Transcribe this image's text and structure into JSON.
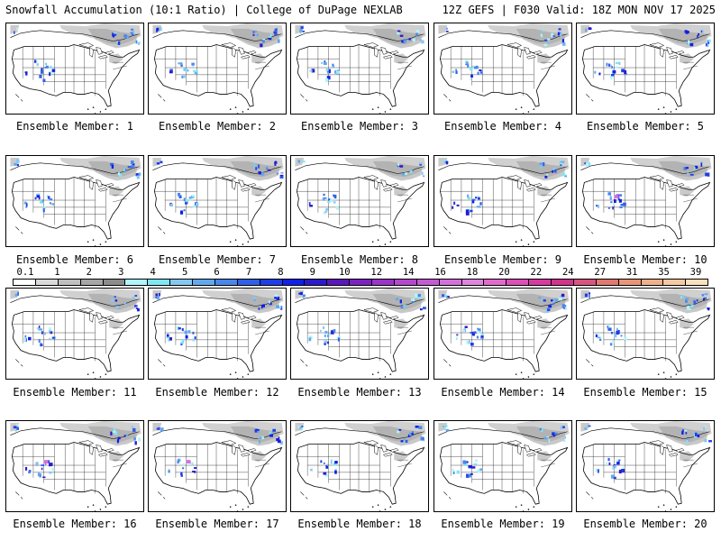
{
  "header": {
    "left": "Snowfall Accumulation (10:1 Ratio) | College of DuPage NEXLAB",
    "right": "12Z GEFS | F030 Valid: 18Z MON NOV 17 2025"
  },
  "members": [
    "Ensemble Member: 1",
    "Ensemble Member: 2",
    "Ensemble Member: 3",
    "Ensemble Member: 4",
    "Ensemble Member: 5",
    "Ensemble Member: 6",
    "Ensemble Member: 7",
    "Ensemble Member: 8",
    "Ensemble Member: 9",
    "Ensemble Member: 10",
    "Ensemble Member: 11",
    "Ensemble Member: 12",
    "Ensemble Member: 13",
    "Ensemble Member: 14",
    "Ensemble Member: 15",
    "Ensemble Member: 16",
    "Ensemble Member: 17",
    "Ensemble Member: 18",
    "Ensemble Member: 19",
    "Ensemble Member: 20"
  ],
  "legend": {
    "labels": [
      "0.1",
      "1",
      "2",
      "3",
      "4",
      "5",
      "6",
      "7",
      "8",
      "9",
      "10",
      "12",
      "14",
      "16",
      "18",
      "20",
      "22",
      "24",
      "27",
      "31",
      "35",
      "39"
    ],
    "colors": [
      "#ffffff",
      "#d9d9d9",
      "#bfbfbf",
      "#a6a6a6",
      "#8c8c8c",
      "#aef6fb",
      "#7fe6f5",
      "#85c7f2",
      "#62a8f0",
      "#4a86ec",
      "#3060e8",
      "#1e3ee6",
      "#0f20e8",
      "#2b1acb",
      "#5a17bd",
      "#7c22c2",
      "#9b35c8",
      "#b448cd",
      "#c45ad4",
      "#d470dc",
      "#de86dd",
      "#e26acc",
      "#de4fb8",
      "#d83aa1",
      "#d2338c",
      "#d8557f",
      "#e2786f",
      "#e99578",
      "#f0b08a",
      "#f6c9a2",
      "#fbe0bd"
    ]
  }
}
